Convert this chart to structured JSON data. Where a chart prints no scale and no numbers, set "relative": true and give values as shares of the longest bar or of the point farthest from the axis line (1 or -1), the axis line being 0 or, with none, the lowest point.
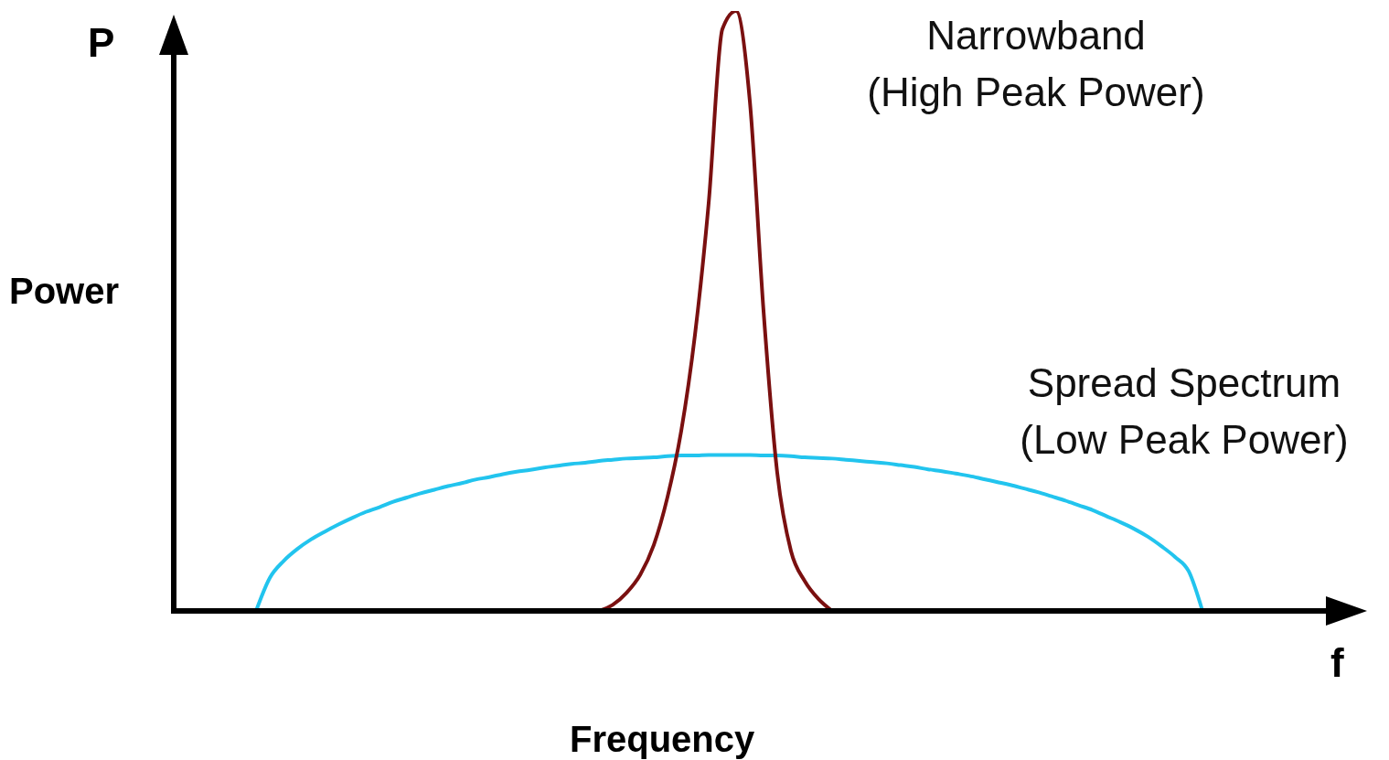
{
  "chart_data": {
    "type": "line",
    "relative": true,
    "xlabel": "Frequency",
    "ylabel": "Power",
    "annotations": [
      "P",
      "f"
    ],
    "grid": false,
    "legend": false,
    "marker": "none",
    "line_style": "solid",
    "categories": [
      null,
      null,
      null,
      null,
      null,
      null,
      null,
      null,
      null,
      null,
      null,
      null,
      null,
      null,
      null,
      null,
      null,
      null,
      null,
      null,
      null,
      null,
      null,
      null,
      null,
      null,
      null,
      null,
      null,
      null,
      null,
      null,
      null,
      null,
      null,
      null,
      null,
      null,
      null,
      null,
      null,
      null,
      null,
      null,
      null,
      null,
      null,
      null,
      null,
      null,
      null,
      null,
      null,
      null,
      null,
      null,
      null,
      null,
      null,
      null,
      null,
      null,
      null,
      null,
      null,
      null,
      null,
      null,
      null,
      null,
      null,
      null,
      null,
      null,
      null,
      null,
      null,
      null,
      null,
      null,
      null,
      null,
      null,
      null,
      null,
      null,
      null
    ],
    "series": [
      {
        "name": "Spread Spectrum\n(Low Peak Power)",
        "color": "#22c4ee",
        "values": [
          null,
          null,
          null,
          null,
          null,
          null,
          0,
          0.055,
          0.083,
          0.103,
          0.119,
          0.132,
          0.144,
          0.155,
          0.165,
          0.173,
          0.182,
          0.189,
          0.196,
          0.202,
          0.208,
          0.213,
          0.219,
          0.223,
          0.228,
          0.232,
          0.235,
          0.239,
          0.242,
          0.245,
          0.247,
          0.25,
          0.252,
          0.254,
          0.255,
          0.256,
          0.258,
          0.259,
          0.259,
          0.26,
          0.26,
          0.26,
          0.26,
          0.259,
          0.259,
          0.258,
          0.256,
          0.255,
          0.254,
          0.252,
          0.25,
          0.248,
          0.246,
          0.243,
          0.24,
          0.236,
          0.233,
          0.229,
          0.225,
          0.22,
          0.215,
          0.21,
          0.204,
          0.198,
          0.191,
          0.184,
          0.176,
          0.168,
          0.158,
          0.148,
          0.137,
          0.124,
          0.108,
          0.09,
          0.066,
          0,
          null,
          null,
          null,
          null,
          null,
          null,
          null,
          null,
          null,
          null,
          null
        ]
      },
      {
        "name": "Narrowband\n(High Peak Power)",
        "color": "#7a1010",
        "values": [
          null,
          null,
          null,
          null,
          null,
          null,
          null,
          null,
          null,
          null,
          null,
          null,
          null,
          null,
          null,
          null,
          null,
          null,
          null,
          null,
          null,
          null,
          null,
          null,
          null,
          null,
          null,
          null,
          null,
          null,
          null,
          0,
          0.01,
          0.03,
          0.06,
          0.11,
          0.19,
          0.3,
          0.46,
          0.68,
          0.97,
          1,
          0.85,
          0.5,
          0.23,
          0.1,
          0.05,
          0.02,
          0,
          null,
          null,
          null,
          null,
          null,
          null,
          null,
          null,
          null,
          null,
          null,
          null,
          null,
          null,
          null,
          null,
          null,
          null,
          null,
          null,
          null,
          null,
          null,
          null,
          null,
          null,
          null,
          null,
          null,
          null,
          null,
          null,
          null,
          null,
          null,
          null,
          null,
          null
        ]
      }
    ]
  }
}
